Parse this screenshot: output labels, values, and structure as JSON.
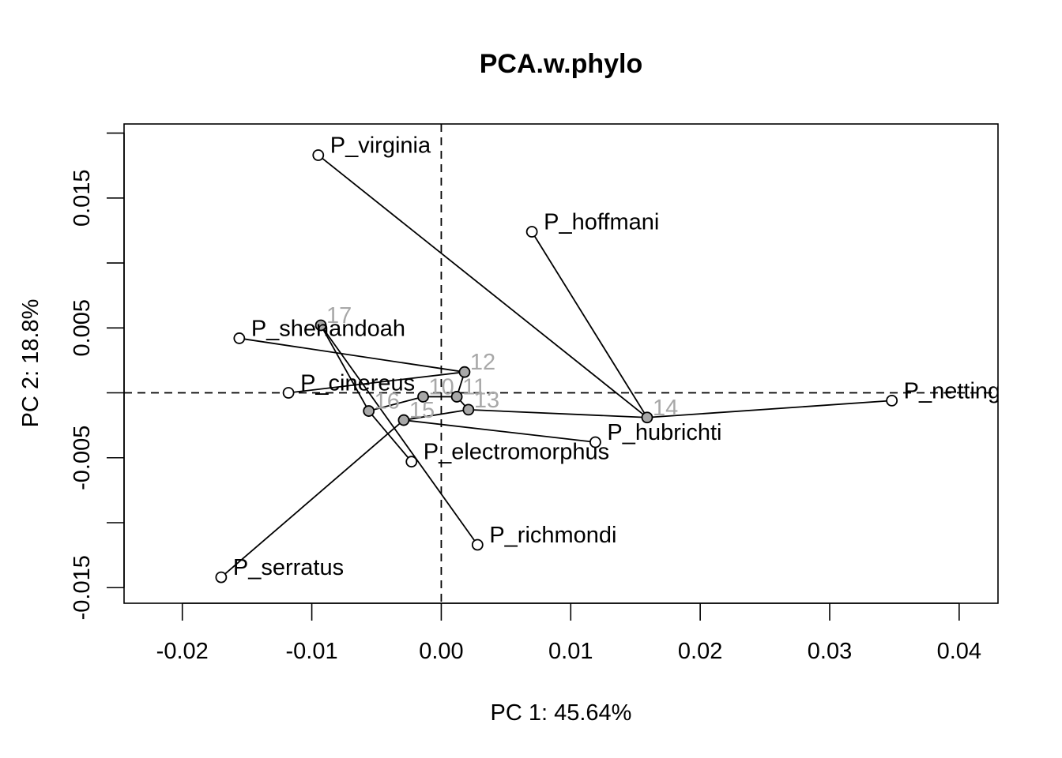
{
  "chart_data": {
    "type": "scatter",
    "title": "PCA.w.phylo",
    "xlabel": "PC 1: 45.64%",
    "ylabel": "PC 2: 18.8%",
    "xlim": [
      -0.0245,
      0.043
    ],
    "ylim": [
      -0.0162,
      0.0207
    ],
    "x_ticks": [
      -0.02,
      -0.01,
      0.0,
      0.01,
      0.02,
      0.03,
      0.04
    ],
    "x_tick_labels": [
      "-0.02",
      "-0.01",
      "0.00",
      "0.01",
      "0.02",
      "0.03",
      "0.04"
    ],
    "y_ticks": [
      -0.015,
      -0.01,
      -0.005,
      0.0,
      0.005,
      0.01,
      0.015,
      0.02
    ],
    "y_tick_labels": [
      "-0.015",
      "",
      "-0.005",
      "",
      "0.005",
      "",
      "0.015",
      ""
    ],
    "reference_lines": {
      "x": 0.0,
      "y": 0.0
    },
    "grid": false,
    "tips": [
      {
        "label": "P_virginia",
        "x": -0.0095,
        "y": 0.0183
      },
      {
        "label": "P_hoffmani",
        "x": 0.007,
        "y": 0.0124
      },
      {
        "label": "P_shenandoah",
        "x": -0.0156,
        "y": 0.0042
      },
      {
        "label": "P_cinereus",
        "x": -0.0118,
        "y": 0.0
      },
      {
        "label": "P_nettingi",
        "x": 0.0348,
        "y": -0.0006
      },
      {
        "label": "P_hubrichti",
        "x": 0.0119,
        "y": -0.0038
      },
      {
        "label": "P_electromorphus",
        "x": -0.0023,
        "y": -0.0053
      },
      {
        "label": "P_richmondi",
        "x": 0.0028,
        "y": -0.0117
      },
      {
        "label": "P_serratus",
        "x": -0.017,
        "y": -0.0142
      }
    ],
    "nodes": [
      {
        "label": "10",
        "x": -0.0014,
        "y": -0.0003
      },
      {
        "label": "11",
        "x": 0.0012,
        "y": -0.0003
      },
      {
        "label": "12",
        "x": 0.0018,
        "y": 0.0016
      },
      {
        "label": "13",
        "x": 0.0021,
        "y": -0.0013
      },
      {
        "label": "14",
        "x": 0.0159,
        "y": -0.0019
      },
      {
        "label": "15",
        "x": -0.0029,
        "y": -0.0021
      },
      {
        "label": "16",
        "x": -0.0056,
        "y": -0.0014
      },
      {
        "label": "17",
        "x": -0.0093,
        "y": 0.0052
      }
    ],
    "edges": [
      [
        "10",
        "11"
      ],
      [
        "10",
        "16"
      ],
      [
        "11",
        "12"
      ],
      [
        "11",
        "13"
      ],
      [
        "12",
        "P_shenandoah"
      ],
      [
        "12",
        "P_cinereus"
      ],
      [
        "13",
        "14"
      ],
      [
        "13",
        "15"
      ],
      [
        "14",
        "P_virginia"
      ],
      [
        "14",
        "P_hoffmani"
      ],
      [
        "14",
        "P_nettingi"
      ],
      [
        "15",
        "P_serratus"
      ],
      [
        "15",
        "P_hubrichti"
      ],
      [
        "16",
        "17"
      ],
      [
        "16",
        "P_electromorphus"
      ],
      [
        "17",
        "P_richmondi"
      ]
    ],
    "colors": {
      "tip_fill": "#ffffff",
      "node_fill": "#a8a8a8",
      "node_label": "#a8a8a8",
      "line": "#000000"
    }
  }
}
